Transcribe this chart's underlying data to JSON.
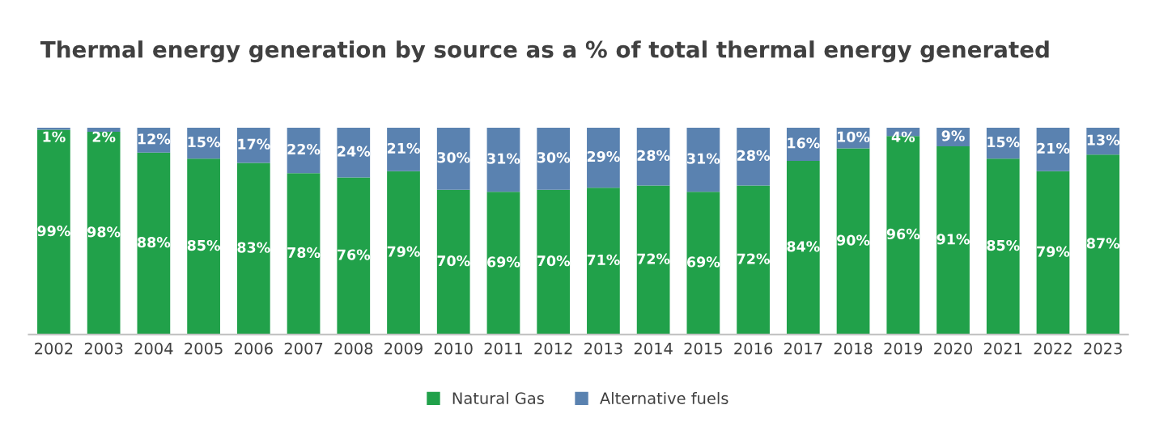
{
  "chart_data": {
    "type": "bar",
    "title": "Thermal energy generation by source as a % of total thermal energy generated",
    "categories": [
      "2002",
      "2003",
      "2004",
      "2005",
      "2006",
      "2007",
      "2008",
      "2009",
      "2010",
      "2011",
      "2012",
      "2013",
      "2014",
      "2015",
      "2016",
      "2017",
      "2018",
      "2019",
      "2020",
      "2021",
      "2022",
      "2023"
    ],
    "stacked": true,
    "legend": "bottom",
    "grid": false,
    "series": [
      {
        "name": "Natural Gas",
        "color": "#21a14a",
        "values": [
          99,
          98,
          88,
          85,
          83,
          78,
          76,
          79,
          70,
          69,
          70,
          71,
          72,
          69,
          72,
          84,
          90,
          96,
          91,
          85,
          79,
          87
        ],
        "value_labels": [
          "99%",
          "98%",
          "88%",
          "85%",
          "83%",
          "78%",
          "76%",
          "79%",
          "70%",
          "69%",
          "70%",
          "71%",
          "72%",
          "69%",
          "72%",
          "84%",
          "90%",
          "96%",
          "91%",
          "85%",
          "79%",
          "87%"
        ]
      },
      {
        "name": "Alternative fuels",
        "color": "#5a82b0",
        "values": [
          1,
          2,
          12,
          15,
          17,
          22,
          24,
          21,
          30,
          31,
          30,
          29,
          28,
          31,
          28,
          16,
          10,
          4,
          9,
          15,
          21,
          13
        ],
        "value_labels": [
          "1%",
          "2%",
          "12%",
          "15%",
          "17%",
          "22%",
          "24%",
          "21%",
          "30%",
          "31%",
          "30%",
          "29%",
          "28%",
          "31%",
          "28%",
          "16%",
          "10%",
          "4%",
          "9%",
          "15%",
          "21%",
          "13%"
        ]
      }
    ]
  }
}
